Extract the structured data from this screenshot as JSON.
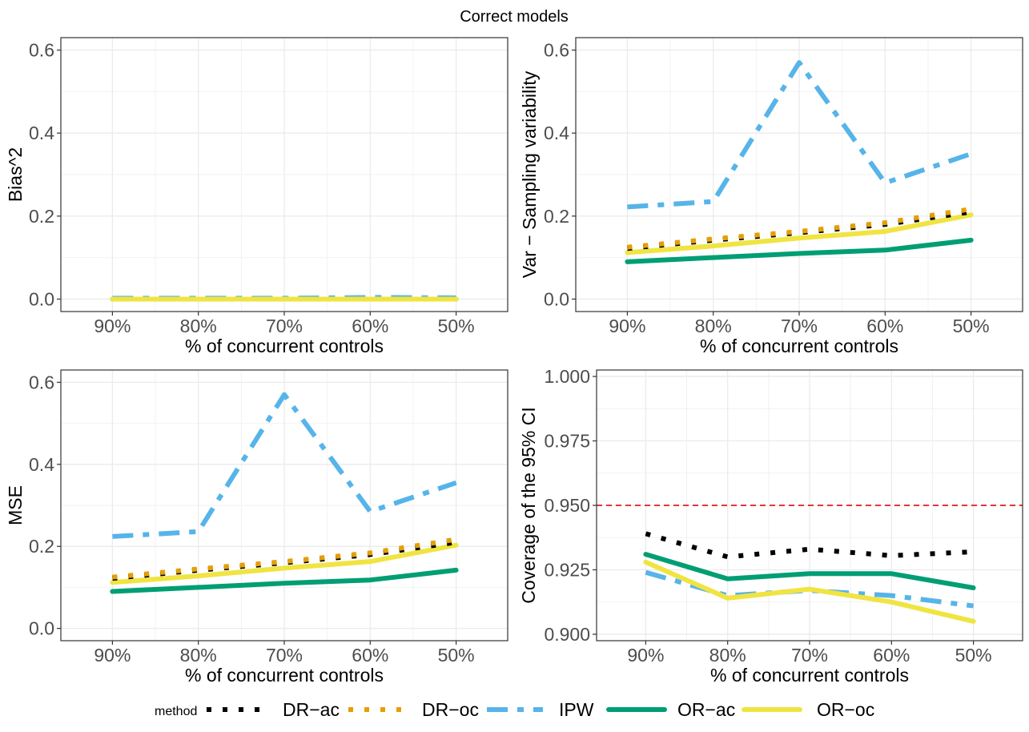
{
  "title": "Correct models",
  "legend": {
    "title": "method",
    "entries": [
      {
        "key": "DR-ac",
        "label": "DR−ac"
      },
      {
        "key": "DR-oc",
        "label": "DR−oc"
      },
      {
        "key": "IPW",
        "label": "IPW"
      },
      {
        "key": "OR-ac",
        "label": "OR−ac"
      },
      {
        "key": "OR-oc",
        "label": "OR−oc"
      }
    ]
  },
  "series_styles": {
    "DR-ac": {
      "color": "#000000",
      "linetype": "dotted"
    },
    "DR-oc": {
      "color": "#E69F00",
      "linetype": "dotted"
    },
    "IPW": {
      "color": "#56B4E9",
      "linetype": "dashdot"
    },
    "OR-ac": {
      "color": "#009E73",
      "linetype": "solid"
    },
    "OR-oc": {
      "color": "#F0E442",
      "linetype": "solid"
    }
  },
  "reference_line_color": "#E41A1C",
  "chart_data": [
    {
      "type": "line",
      "panel": "top-left",
      "categories": [
        "90%",
        "80%",
        "70%",
        "60%",
        "50%"
      ],
      "xlabel": "% of concurrent controls",
      "ylabel": "Bias^2",
      "ylim": [
        -0.03,
        0.63
      ],
      "yticks": [
        0.0,
        0.2,
        0.4,
        0.6
      ],
      "ytick_labels": [
        "0.0",
        "0.2",
        "0.4",
        "0.6"
      ],
      "series": [
        {
          "name": "IPW",
          "values": [
            0.002,
            0.002,
            0.002,
            0.004,
            0.003
          ]
        },
        {
          "name": "DR-ac",
          "values": [
            0.0,
            0.0,
            0.0,
            0.0,
            0.0
          ]
        },
        {
          "name": "DR-oc",
          "values": [
            0.0,
            0.0,
            0.0,
            0.0,
            0.0
          ]
        },
        {
          "name": "OR-ac",
          "values": [
            0.0,
            0.0,
            0.0,
            0.0,
            0.0
          ]
        },
        {
          "name": "OR-oc",
          "values": [
            0.0,
            0.0,
            0.0,
            0.0,
            0.0
          ]
        }
      ]
    },
    {
      "type": "line",
      "panel": "top-right",
      "categories": [
        "90%",
        "80%",
        "70%",
        "60%",
        "50%"
      ],
      "xlabel": "% of concurrent controls",
      "ylabel": "Var − Sampling variability",
      "ylim": [
        -0.03,
        0.63
      ],
      "yticks": [
        0.0,
        0.2,
        0.4,
        0.6
      ],
      "ytick_labels": [
        "0.0",
        "0.2",
        "0.4",
        "0.6"
      ],
      "series": [
        {
          "name": "IPW",
          "values": [
            0.222,
            0.235,
            0.57,
            0.28,
            0.35
          ]
        },
        {
          "name": "OR-ac",
          "values": [
            0.09,
            0.1,
            0.11,
            0.118,
            0.142
          ]
        },
        {
          "name": "OR-oc",
          "values": [
            0.112,
            0.128,
            0.147,
            0.163,
            0.203
          ]
        },
        {
          "name": "DR-ac",
          "values": [
            0.122,
            0.142,
            0.16,
            0.18,
            0.21
          ]
        },
        {
          "name": "DR-oc",
          "values": [
            0.125,
            0.145,
            0.163,
            0.184,
            0.217
          ]
        }
      ]
    },
    {
      "type": "line",
      "panel": "bottom-left",
      "categories": [
        "90%",
        "80%",
        "70%",
        "60%",
        "50%"
      ],
      "xlabel": "% of concurrent controls",
      "ylabel": "MSE",
      "ylim": [
        -0.03,
        0.63
      ],
      "yticks": [
        0.0,
        0.2,
        0.4,
        0.6
      ],
      "ytick_labels": [
        "0.0",
        "0.2",
        "0.4",
        "0.6"
      ],
      "series": [
        {
          "name": "IPW",
          "values": [
            0.224,
            0.236,
            0.57,
            0.285,
            0.355
          ]
        },
        {
          "name": "OR-ac",
          "values": [
            0.09,
            0.1,
            0.11,
            0.118,
            0.142
          ]
        },
        {
          "name": "OR-oc",
          "values": [
            0.112,
            0.128,
            0.147,
            0.163,
            0.203
          ]
        },
        {
          "name": "DR-ac",
          "values": [
            0.122,
            0.142,
            0.16,
            0.18,
            0.21
          ]
        },
        {
          "name": "DR-oc",
          "values": [
            0.125,
            0.145,
            0.163,
            0.184,
            0.217
          ]
        }
      ]
    },
    {
      "type": "line",
      "panel": "bottom-right",
      "categories": [
        "90%",
        "80%",
        "70%",
        "60%",
        "50%"
      ],
      "xlabel": "% of concurrent controls",
      "ylabel": "Coverage of the 95% CI",
      "ylim": [
        0.8975,
        1.0025
      ],
      "yticks": [
        0.9,
        0.925,
        0.95,
        0.975,
        1.0
      ],
      "ytick_labels": [
        "0.900",
        "0.925",
        "0.950",
        "0.975",
        "1.000"
      ],
      "reference_line": 0.95,
      "series": [
        {
          "name": "IPW",
          "values": [
            0.924,
            0.915,
            0.917,
            0.915,
            0.911
          ]
        },
        {
          "name": "OR-ac",
          "values": [
            0.931,
            0.9215,
            0.9235,
            0.9235,
            0.918
          ]
        },
        {
          "name": "OR-oc",
          "values": [
            0.928,
            0.914,
            0.9175,
            0.9125,
            0.905
          ]
        },
        {
          "name": "DR-ac",
          "values": [
            0.939,
            0.93,
            0.933,
            0.9305,
            0.932
          ]
        }
      ]
    }
  ]
}
